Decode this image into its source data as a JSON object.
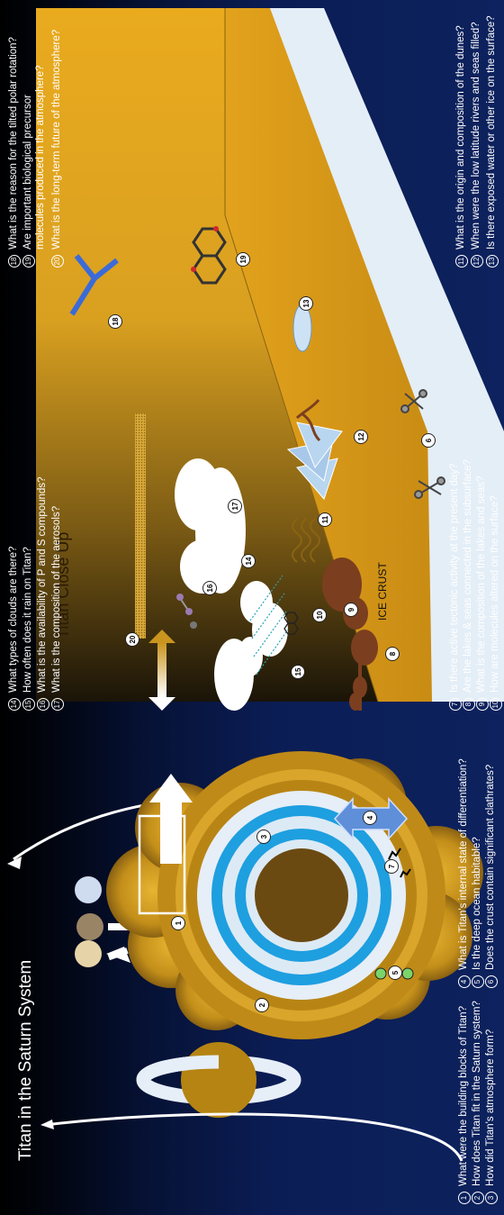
{
  "titles": {
    "saturn_system": "Titan in the Saturn System",
    "close_up": "Titan Close Up",
    "ice_crust": "ICE CRUST"
  },
  "numbers": [
    "1",
    "2",
    "3",
    "4",
    "5",
    "6",
    "7",
    "8",
    "9",
    "10",
    "11",
    "12",
    "13",
    "14",
    "15",
    "16",
    "17",
    "18",
    "19",
    "20"
  ],
  "questions": [
    {
      "num": "1",
      "text": "What were the building blocks of Titan?"
    },
    {
      "num": "2",
      "text": "How does Titan fit in the Saturn system?"
    },
    {
      "num": "3",
      "text": "How did Titan's atmosphere form?"
    },
    {
      "num": "4",
      "text": "What is Titan's internal state of differentiation?"
    },
    {
      "num": "5",
      "text": "Is the deep ocean habitable?"
    },
    {
      "num": "6",
      "text": "Does the crust contain significant clathrates?"
    },
    {
      "num": "7",
      "text": "Is there active tectonic activity at the present day?"
    },
    {
      "num": "8",
      "text": "Are the lakes & seas connected in the subsurface?"
    },
    {
      "num": "9",
      "text": "What is the composition of the lakes and seas?"
    },
    {
      "num": "10",
      "text": "How are molecules altered on the surface?"
    },
    {
      "num": "11",
      "text": "What is the origin and composition of the dunes?"
    },
    {
      "num": "12",
      "text": "When were the low latitude rivers and seas filled?"
    },
    {
      "num": "13",
      "text": "Is there exposed water or other ice on the surface?"
    },
    {
      "num": "14",
      "text": "What types of clouds are there?"
    },
    {
      "num": "15",
      "text": "How often does it rain on Titan?"
    },
    {
      "num": "16",
      "text": "What is the availability of P and S compounds?"
    },
    {
      "num": "17",
      "text": "What is the composition of the aerosols?"
    },
    {
      "num": "18",
      "text": "What is the reason for the tilted polar rotation?"
    },
    {
      "num": "19",
      "text": "Are important biological precursor molecules produced in the atmosphere?"
    },
    {
      "num": "20",
      "text": "What is the long-term future of the atmosphere?"
    }
  ],
  "colors": {
    "sky_top": "#000000",
    "sky_bottom": "#0d225e",
    "titan_gold": "#c8961c",
    "haze": "#d9a521",
    "ocean_blue": "#1e9fe0",
    "ice_light": "#dceaf5",
    "core_brown": "#5c3d10",
    "lake_brown": "#7b3f1f",
    "surface_orange": "#e3a11d",
    "crust_ice": "#e4eef7"
  }
}
